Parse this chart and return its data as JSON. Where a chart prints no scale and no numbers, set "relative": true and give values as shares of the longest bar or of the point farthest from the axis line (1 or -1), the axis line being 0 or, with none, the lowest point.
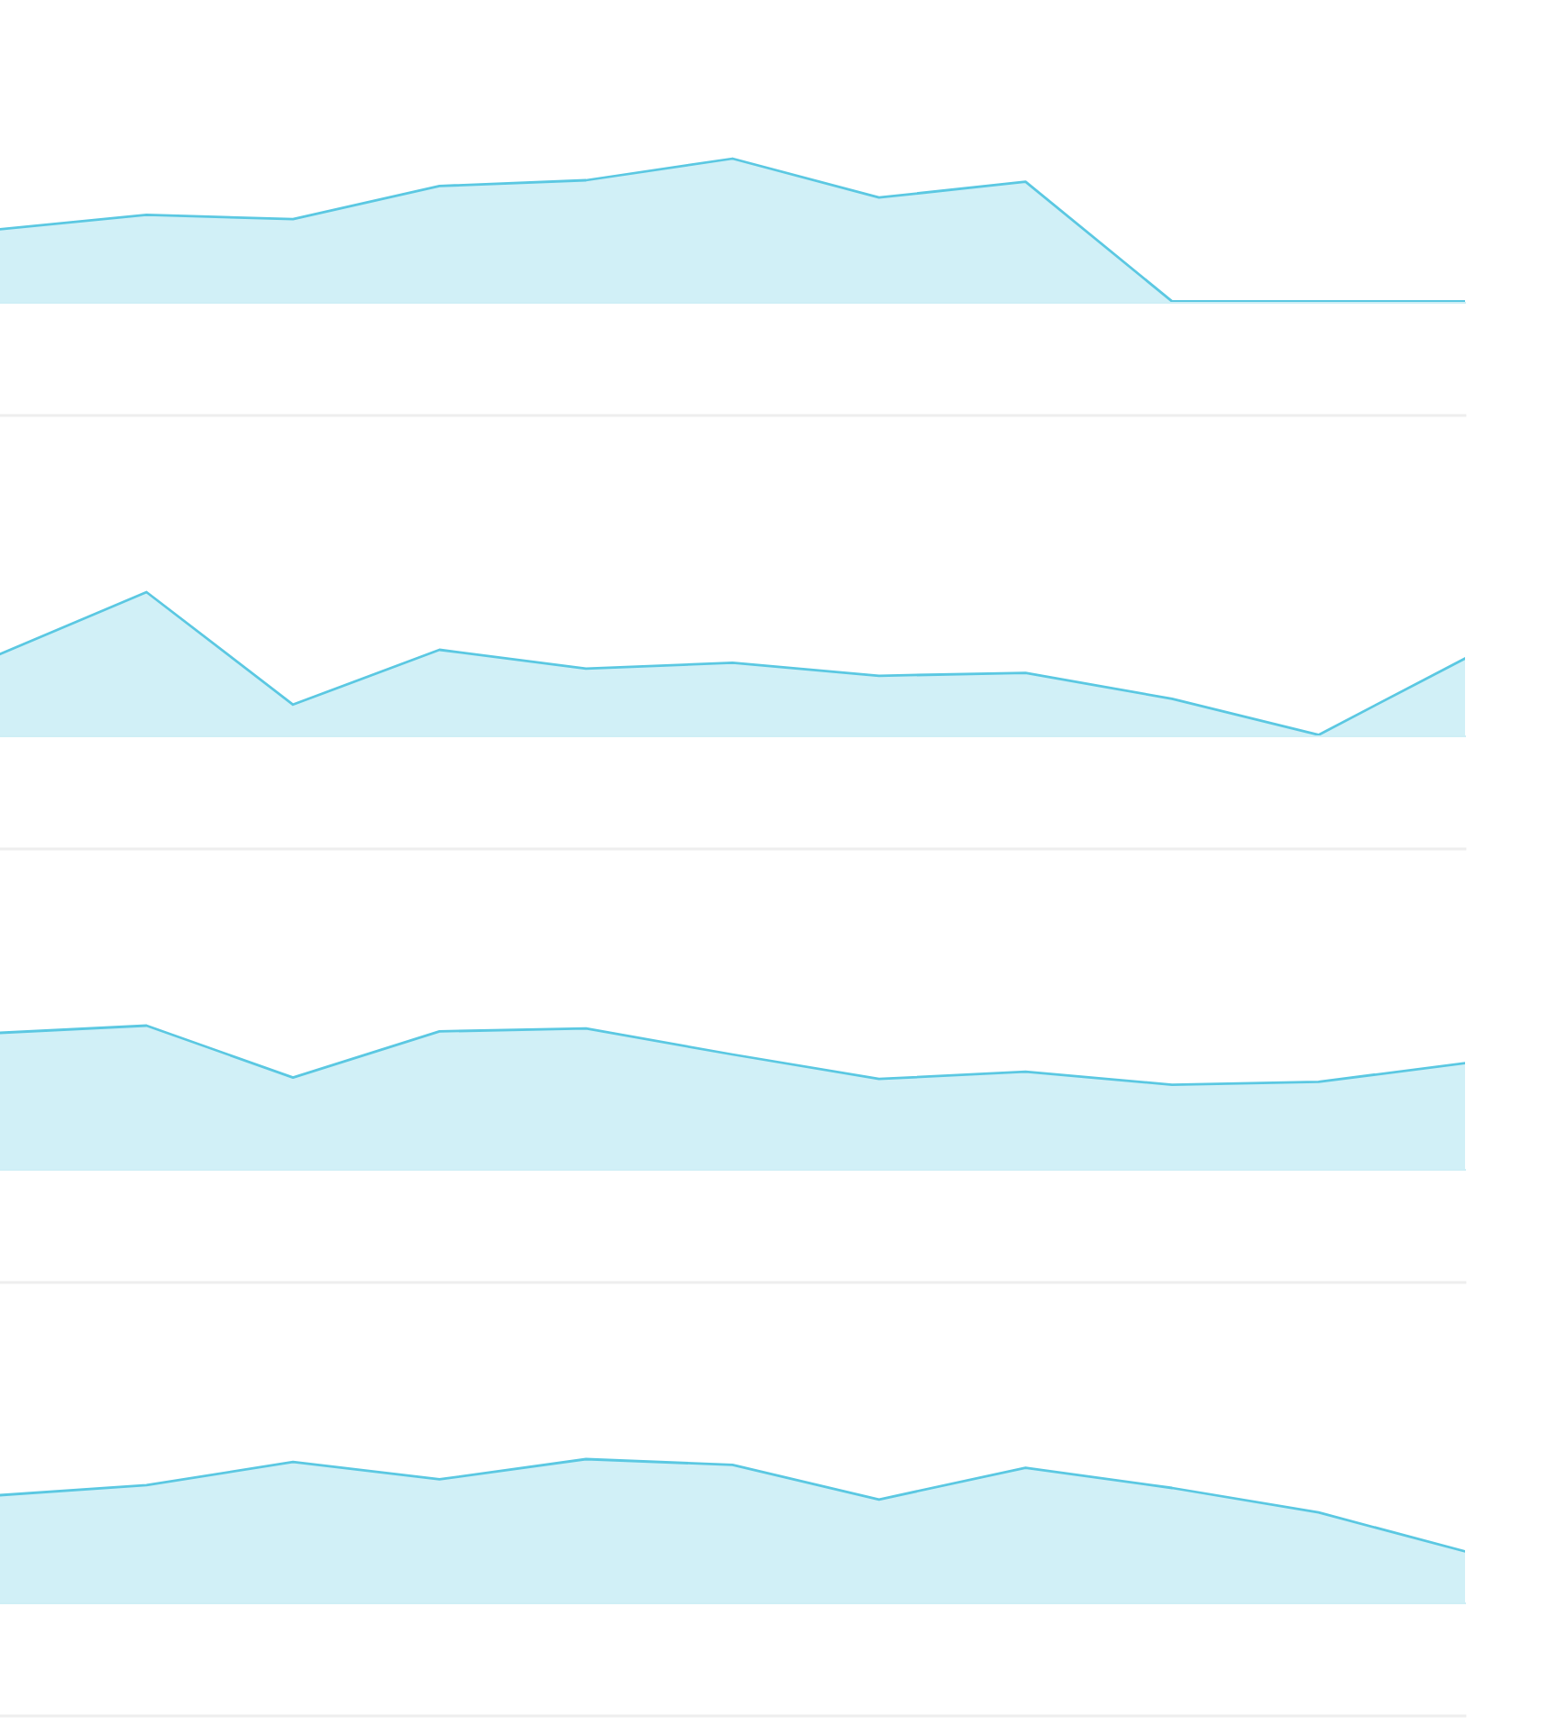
{
  "chart_data": [
    {
      "type": "area",
      "relative": true,
      "categories": [
        null,
        null,
        null,
        null,
        null,
        null,
        null,
        null,
        null,
        null,
        null
      ],
      "series": [
        {
          "color": "#5bc8e2",
          "values": [
            0.51,
            0.61,
            0.58,
            0.81,
            0.85,
            1,
            0.73,
            0.84,
            0.01,
            0.01,
            0.01
          ]
        }
      ]
    },
    {
      "type": "area",
      "relative": true,
      "categories": [
        null,
        null,
        null,
        null,
        null,
        null,
        null,
        null,
        null,
        null,
        null
      ],
      "series": [
        {
          "color": "#5bc8e2",
          "values": [
            0.57,
            1,
            0.22,
            0.6,
            0.47,
            0.51,
            0.42,
            0.44,
            0.26,
            0.01,
            0.54
          ]
        }
      ]
    },
    {
      "type": "area",
      "relative": true,
      "categories": [
        null,
        null,
        null,
        null,
        null,
        null,
        null,
        null,
        null,
        null,
        null
      ],
      "series": [
        {
          "color": "#5bc8e2",
          "values": [
            0.95,
            1,
            0.64,
            0.96,
            0.98,
            0.8,
            0.63,
            0.68,
            0.59,
            0.61,
            0.74
          ]
        }
      ]
    },
    {
      "type": "area",
      "relative": true,
      "categories": [
        null,
        null,
        null,
        null,
        null,
        null,
        null,
        null,
        null,
        null,
        null
      ],
      "series": [
        {
          "color": "#5bc8e2",
          "values": [
            0.75,
            0.82,
            0.98,
            0.86,
            1,
            0.96,
            0.72,
            0.94,
            0.8,
            0.63,
            0.36
          ]
        }
      ]
    }
  ]
}
